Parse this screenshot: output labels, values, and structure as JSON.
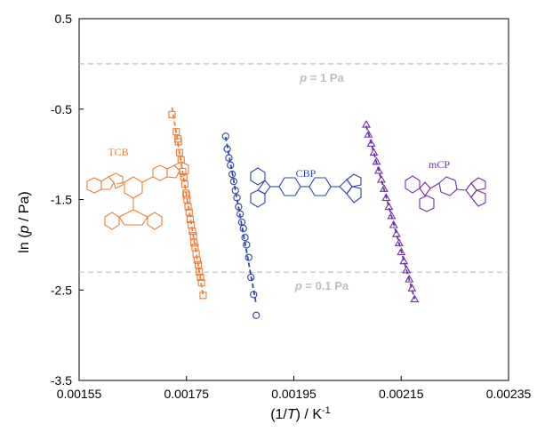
{
  "chart_data": {
    "type": "scatter",
    "xlabel": {
      "prefix": "(1/",
      "var": "T",
      "suffix": ") / K",
      "sup": "-1"
    },
    "ylabel": {
      "prefix": "ln (",
      "var": "p",
      "suffix": " / Pa)"
    },
    "xlim": [
      0.00155,
      0.00235
    ],
    "ylim": [
      -3.5,
      0.5
    ],
    "x_ticks": [
      0.00155,
      0.00175,
      0.00195,
      0.00215,
      0.00235
    ],
    "x_tick_labels": [
      "0.00155",
      "0.00175",
      "0.00195",
      "0.00215",
      "0.00235"
    ],
    "y_ticks": [
      0.5,
      -0.5,
      -1.5,
      -2.5,
      -3.5
    ],
    "y_tick_labels": [
      "0.5",
      "-0.5",
      "-1.5",
      "-2.5",
      "-3.5"
    ],
    "grid": false,
    "reference_lines": [
      {
        "y": 0.0,
        "label_var": "p",
        "label_text": " = 1 Pa",
        "color": "#bdbdbd"
      },
      {
        "y": -2.3026,
        "label_var": "p",
        "label_text": " = 0.1 Pa",
        "color": "#bdbdbd"
      }
    ],
    "series": [
      {
        "name": "TCB",
        "color": "#ed7d31",
        "marker": "square",
        "x": [
          0.001723,
          0.001731,
          0.001734,
          0.001735,
          0.001737,
          0.00174,
          0.001743,
          0.001745,
          0.001747,
          0.001749,
          0.00175,
          0.001751,
          0.001753,
          0.001755,
          0.001757,
          0.001759,
          0.001761,
          0.001763,
          0.001764,
          0.001766,
          0.001768,
          0.00177,
          0.001772,
          0.001774,
          0.001776,
          0.001778,
          0.001781
        ],
        "y": [
          -0.56,
          -0.75,
          -0.83,
          -0.86,
          -0.98,
          -1.06,
          -1.19,
          -1.25,
          -1.33,
          -1.43,
          -1.45,
          -1.5,
          -1.58,
          -1.64,
          -1.72,
          -1.78,
          -1.85,
          -1.9,
          -1.98,
          -2.03,
          -2.1,
          -2.17,
          -2.22,
          -2.3,
          -2.36,
          -2.42,
          -2.56
        ]
      },
      {
        "name": "CBP",
        "color": "#2e45a6",
        "marker": "circle",
        "x": [
          0.001823,
          0.001826,
          0.001829,
          0.001832,
          0.001835,
          0.001838,
          0.001841,
          0.001844,
          0.001847,
          0.00185,
          0.001853,
          0.001856,
          0.001859,
          0.001862,
          0.001866,
          0.00187,
          0.001875,
          0.00188
        ],
        "y": [
          -0.8,
          -0.94,
          -1.04,
          -1.12,
          -1.22,
          -1.3,
          -1.4,
          -1.48,
          -1.58,
          -1.66,
          -1.75,
          -1.82,
          -1.92,
          -2.0,
          -2.14,
          -2.36,
          -2.55,
          -2.78
        ]
      },
      {
        "name": "mCP",
        "color": "#7030a0",
        "marker": "triangle",
        "x": [
          0.002085,
          0.002089,
          0.002094,
          0.002099,
          0.002104,
          0.002108,
          0.002113,
          0.002118,
          0.002122,
          0.002127,
          0.002132,
          0.002136,
          0.002141,
          0.002146,
          0.00215,
          0.002155,
          0.00216,
          0.002165,
          0.00217,
          0.002175
        ],
        "y": [
          -0.67,
          -0.78,
          -0.88,
          -0.98,
          -1.08,
          -1.18,
          -1.28,
          -1.38,
          -1.48,
          -1.58,
          -1.68,
          -1.78,
          -1.88,
          -1.98,
          -2.08,
          -2.18,
          -2.28,
          -2.38,
          -2.48,
          -2.6
        ]
      }
    ]
  },
  "molecules": [
    {
      "name": "TCB",
      "color": "#ed7d31"
    },
    {
      "name": "CBP",
      "color": "#2e45a6"
    },
    {
      "name": "mCP",
      "color": "#7030a0"
    }
  ]
}
